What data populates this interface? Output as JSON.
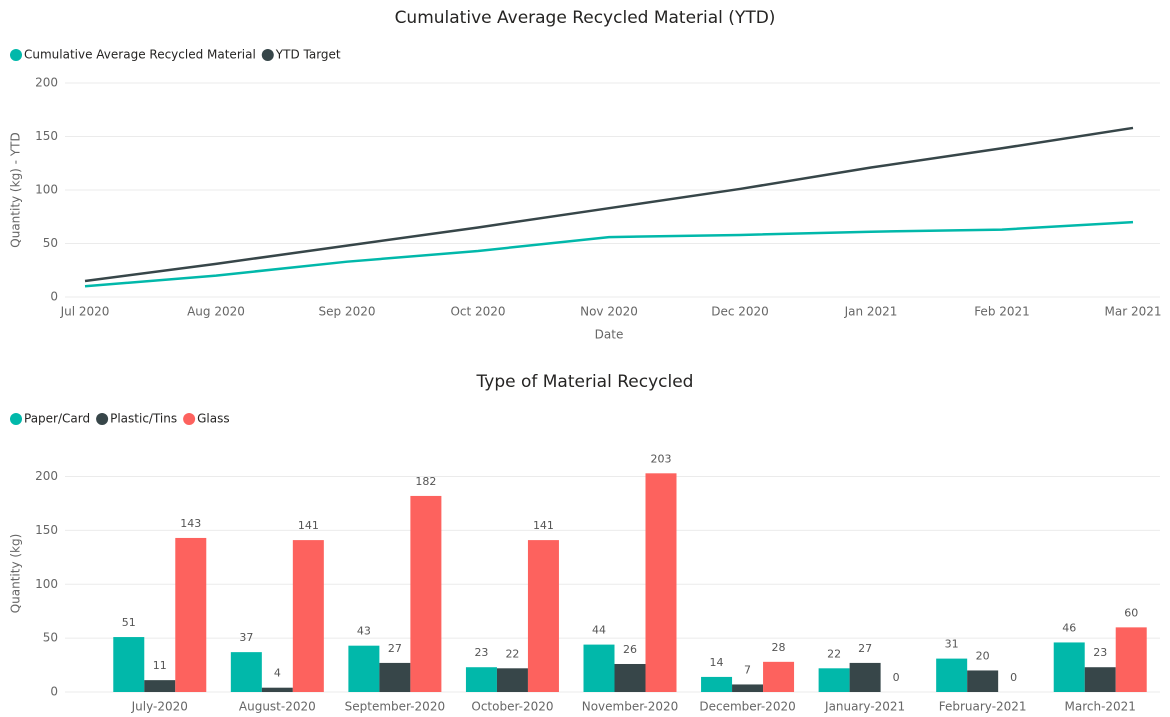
{
  "chart_data": [
    {
      "type": "line",
      "title": "Cumulative Average Recycled Material (YTD)",
      "x_label": "Date",
      "y_label": "Quantity (kg) - YTD",
      "categories": [
        "Jul 2020",
        "Aug 2020",
        "Sep 2020",
        "Oct 2020",
        "Nov 2020",
        "Dec 2020",
        "Jan 2021",
        "Feb 2021",
        "Mar 2021"
      ],
      "series": [
        {
          "name": "Cumulative Average Recycled Material",
          "color": "#01b8aa",
          "values": [
            10,
            20,
            33,
            43,
            56,
            58,
            61,
            63,
            70
          ]
        },
        {
          "name": "YTD Target",
          "color": "#374649",
          "values": [
            15,
            31,
            48,
            65,
            83,
            101,
            121,
            139,
            158
          ]
        }
      ],
      "ylim": [
        0,
        200
      ],
      "yticks": [
        0,
        50,
        100,
        150,
        200
      ],
      "grid": true
    },
    {
      "type": "bar",
      "title": "Type of Material Recycled",
      "y_label": "Quantity (kg)",
      "categories": [
        "July-2020",
        "August-2020",
        "September-2020",
        "October-2020",
        "November-2020",
        "December-2020",
        "January-2021",
        "February-2021",
        "March-2021"
      ],
      "series": [
        {
          "name": "Paper/Card",
          "color": "#01b8aa",
          "values": [
            51,
            37,
            43,
            23,
            44,
            14,
            22,
            31,
            46
          ]
        },
        {
          "name": "Plastic/Tins",
          "color": "#374649",
          "values": [
            11,
            4,
            27,
            22,
            26,
            7,
            27,
            20,
            23
          ]
        },
        {
          "name": "Glass",
          "color": "#fd625e",
          "values": [
            143,
            141,
            182,
            141,
            203,
            28,
            0,
            0,
            60
          ]
        }
      ],
      "ylim": [
        0,
        220
      ],
      "yticks": [
        0,
        50,
        100,
        150,
        200
      ],
      "grid": true
    }
  ]
}
